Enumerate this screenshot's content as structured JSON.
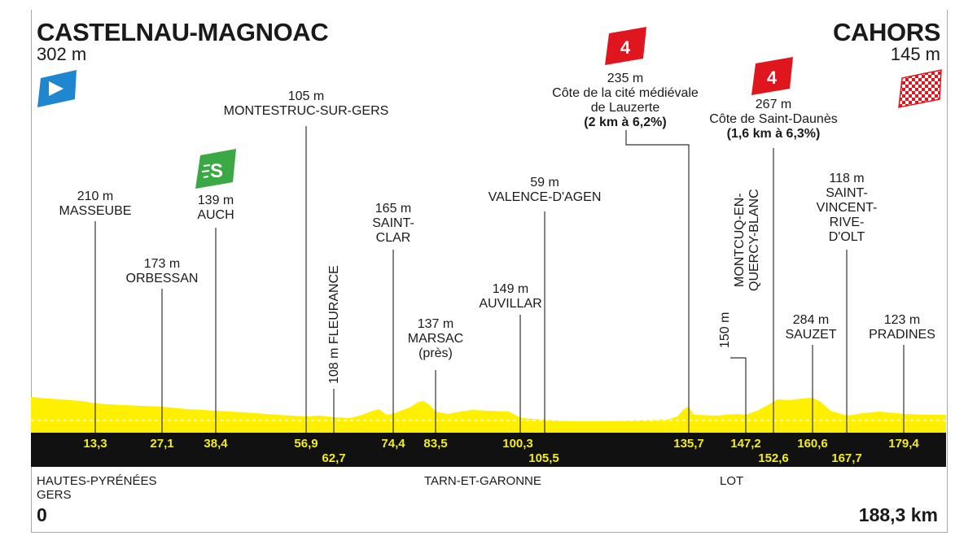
{
  "start": {
    "city": "CASTELNAU-MAGNOAC",
    "altitude": "302 m",
    "icon": "start-flag-icon",
    "color": "#1f87d0"
  },
  "finish": {
    "city": "CAHORS",
    "altitude": "145 m",
    "icon": "finish-flag-icon"
  },
  "sprint": {
    "badge": "S",
    "color": "#3aa845"
  },
  "climbs": [
    {
      "badge": "4",
      "color": "#e0161e",
      "altitude": "235 m",
      "name_line1": "Côte de la cité médiévale",
      "name_line2": "de Lauzerte",
      "detail": "(2 km à 6,2%)"
    },
    {
      "badge": "4",
      "color": "#e0161e",
      "altitude": "267 m",
      "name": "Côte de Saint-Daunès",
      "detail": "(1,6 km à 6,3%)"
    }
  ],
  "locations": [
    {
      "id": "masseube",
      "km": "13,3",
      "altitude": "210 m",
      "lines": [
        "MASSEUBE"
      ]
    },
    {
      "id": "orbessan",
      "km": "27,1",
      "altitude": "173 m",
      "lines": [
        "ORBESSAN"
      ]
    },
    {
      "id": "auch",
      "km": "38,4",
      "altitude": "139 m",
      "lines": [
        "AUCH"
      ]
    },
    {
      "id": "montestruc",
      "km": "56,9",
      "altitude": "105 m",
      "lines": [
        "MONTESTRUC-SUR-GERS"
      ]
    },
    {
      "id": "fleurance",
      "km": "62,7",
      "text": "108 m FLEURANCE"
    },
    {
      "id": "saint-clar",
      "km": "74,4",
      "altitude": "165 m",
      "lines": [
        "SAINT-",
        "CLAR"
      ]
    },
    {
      "id": "marsac",
      "km": "83,5",
      "altitude": "137 m",
      "lines": [
        "MARSAC",
        "(près)"
      ]
    },
    {
      "id": "auvillar",
      "km": "100,3",
      "altitude": "149 m",
      "lines": [
        "AUVILLAR"
      ]
    },
    {
      "id": "valence",
      "km": "105,5",
      "altitude": "59 m",
      "lines": [
        "VALENCE-D'AGEN"
      ]
    },
    {
      "id": "lauzerte",
      "km": "135,7"
    },
    {
      "id": "montcuq",
      "km": "147,2",
      "text1": "MONTCUQ-EN-",
      "text2": "QUERCY-BLANC",
      "text3": "150 m"
    },
    {
      "id": "saint-daunes",
      "km": "152,6"
    },
    {
      "id": "sauzet",
      "km": "160,6",
      "altitude": "284 m",
      "lines": [
        "SAUZET"
      ]
    },
    {
      "id": "saint-vincent",
      "km": "167,7",
      "altitude": "118 m",
      "lines": [
        "SAINT-",
        "VINCENT-",
        "RIVE-",
        "D'OLT"
      ]
    },
    {
      "id": "pradines",
      "km": "179,4",
      "altitude": "123 m",
      "lines": [
        "PRADINES"
      ]
    }
  ],
  "regions": {
    "left_1": "HAUTES-PYRÉNÉES",
    "left_2": "GERS",
    "middle": "TARN-ET-GARONNE",
    "right": "LOT"
  },
  "distance": {
    "start": "0",
    "total": "188,3 km"
  },
  "colors": {
    "profile": "#ffef00",
    "band": "#111111",
    "km_text": "#f1ec1c"
  }
}
